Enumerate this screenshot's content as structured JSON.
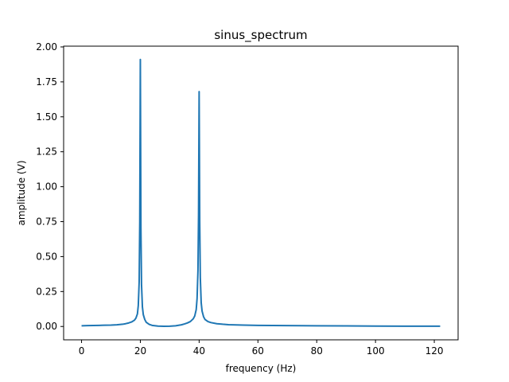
{
  "chart_data": {
    "type": "line",
    "title": "sinus_spectrum",
    "xlabel": "frequency (Hz)",
    "ylabel": "amplitude (V)",
    "xlim": [
      -6.1,
      128.1
    ],
    "ylim": [
      -0.0955,
      2.0055
    ],
    "xticks": [
      0,
      20,
      40,
      60,
      80,
      100,
      120
    ],
    "xtick_labels": [
      "0",
      "20",
      "40",
      "60",
      "80",
      "100",
      "120"
    ],
    "yticks": [
      0.0,
      0.25,
      0.5,
      0.75,
      1.0,
      1.25,
      1.5,
      1.75,
      2.0
    ],
    "ytick_labels": [
      "0.00",
      "0.25",
      "0.50",
      "0.75",
      "1.00",
      "1.25",
      "1.50",
      "1.75",
      "2.00"
    ],
    "grid": false,
    "legend": "none",
    "colors": {
      "line": "#1f77b4",
      "axes": "#000000",
      "background": "#ffffff"
    },
    "series": [
      {
        "x": [
          0,
          2,
          4,
          6,
          8,
          10,
          12,
          14,
          15,
          16,
          17,
          18,
          18.5,
          19,
          19.3,
          19.6,
          19.8,
          20,
          20.2,
          20.4,
          20.7,
          21,
          21.5,
          22,
          23,
          24,
          26,
          28,
          30,
          32,
          34,
          35,
          36,
          37,
          38,
          38.5,
          39,
          39.3,
          39.6,
          39.8,
          40,
          40.2,
          40.4,
          40.7,
          41,
          41.5,
          42,
          43,
          44,
          46,
          48,
          50,
          55,
          60,
          70,
          80,
          90,
          100,
          110,
          120,
          122
        ],
        "y": [
          0.005,
          0.006,
          0.007,
          0.008,
          0.009,
          0.01,
          0.012,
          0.016,
          0.02,
          0.025,
          0.032,
          0.045,
          0.06,
          0.09,
          0.15,
          0.32,
          0.75,
          1.91,
          0.7,
          0.3,
          0.14,
          0.085,
          0.05,
          0.03,
          0.015,
          0.008,
          0.003,
          0.001,
          0.002,
          0.005,
          0.012,
          0.018,
          0.025,
          0.035,
          0.055,
          0.075,
          0.12,
          0.2,
          0.4,
          0.8,
          1.68,
          0.75,
          0.35,
          0.17,
          0.11,
          0.07,
          0.05,
          0.035,
          0.028,
          0.02,
          0.016,
          0.013,
          0.01,
          0.008,
          0.006,
          0.005,
          0.004,
          0.003,
          0.002,
          0.002,
          0.002
        ]
      }
    ]
  }
}
